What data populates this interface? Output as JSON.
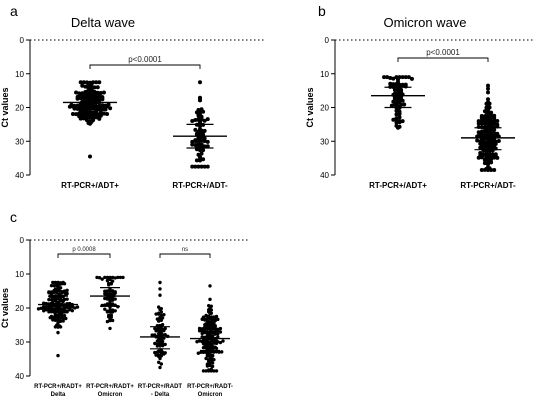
{
  "chart_data": [
    {
      "panel": "a",
      "type": "scatter",
      "title": "Delta wave",
      "ylabel": "Ct values",
      "ylim": [
        0,
        40
      ],
      "y_reversed": true,
      "yticks": [
        "0",
        "10",
        "20",
        "30",
        "40"
      ],
      "categories": [
        "RT-PCR+/ADT+",
        "RT-PCR+/ADT-"
      ],
      "groups": [
        {
          "category": "RT-PCR+/ADT+",
          "n": 145,
          "median": 18.5,
          "q1": 16.5,
          "q3": 20.5,
          "min": 12.5,
          "max": 34.5
        },
        {
          "category": "RT-PCR+/ADT-",
          "n": 75,
          "median": 28.5,
          "q1": 25.0,
          "q3": 32.0,
          "min": 12.5,
          "max": 37.5
        }
      ],
      "reference_line": 0,
      "annotation": {
        "text": "p<0.0001",
        "between": [
          "RT-PCR+/ADT+",
          "RT-PCR+/ADT-"
        ]
      }
    },
    {
      "panel": "b",
      "type": "scatter",
      "title": "Omicron wave",
      "ylabel": "Ct values",
      "ylim": [
        0,
        40
      ],
      "y_reversed": true,
      "yticks": [
        "0",
        "10",
        "20",
        "30",
        "40"
      ],
      "categories": [
        "RT-PCR+/ADT+",
        "RT-PCR+/ADT-"
      ],
      "groups": [
        {
          "category": "RT-PCR+/ADT+",
          "n": 70,
          "median": 16.5,
          "q1": 14.0,
          "q3": 20.0,
          "min": 11.0,
          "max": 26.0
        },
        {
          "category": "RT-PCR+/ADT-",
          "n": 150,
          "median": 29.0,
          "q1": 26.0,
          "q3": 32.5,
          "min": 13.5,
          "max": 38.5
        }
      ],
      "reference_line": 0,
      "annotation": {
        "text": "p<0.0001",
        "between": [
          "RT-PCR+/ADT+",
          "RT-PCR+/ADT-"
        ]
      }
    },
    {
      "panel": "c",
      "type": "scatter",
      "title": "",
      "ylabel": "Ct values",
      "ylim": [
        0,
        40
      ],
      "y_reversed": true,
      "yticks": [
        "0",
        "10",
        "20",
        "30",
        "40"
      ],
      "categories": [
        [
          "RT-PCR+/RADT+",
          "Delta"
        ],
        [
          "RT-PCR+/RADT+",
          "Omicron"
        ],
        [
          "RT-PCR+/RADT",
          "- Delta"
        ],
        [
          "RT-PCR+/RADT-",
          "Omicron"
        ]
      ],
      "groups": [
        {
          "category": "RT-PCR+/RADT+ Delta",
          "n": 145,
          "median": 19.0,
          "q1": 16.5,
          "q3": 21.0,
          "min": 12.5,
          "max": 34.0
        },
        {
          "category": "RT-PCR+/RADT+ Omicron",
          "n": 70,
          "median": 16.5,
          "q1": 14.0,
          "q3": 19.5,
          "min": 11.0,
          "max": 26.0
        },
        {
          "category": "RT-PCR+/RADT - Delta",
          "n": 75,
          "median": 28.5,
          "q1": 25.5,
          "q3": 32.0,
          "min": 12.5,
          "max": 37.5
        },
        {
          "category": "RT-PCR+/RADT- Omicron",
          "n": 150,
          "median": 29.0,
          "q1": 26.0,
          "q3": 32.5,
          "min": 13.5,
          "max": 38.5
        }
      ],
      "reference_line": 0,
      "annotations": [
        {
          "text": "p 0.0008",
          "between": [
            "RT-PCR+/RADT+ Delta",
            "RT-PCR+/RADT+ Omicron"
          ]
        },
        {
          "text": "ns",
          "between": [
            "RT-PCR+/RADT - Delta",
            "RT-PCR+/RADT- Omicron"
          ]
        }
      ]
    }
  ]
}
